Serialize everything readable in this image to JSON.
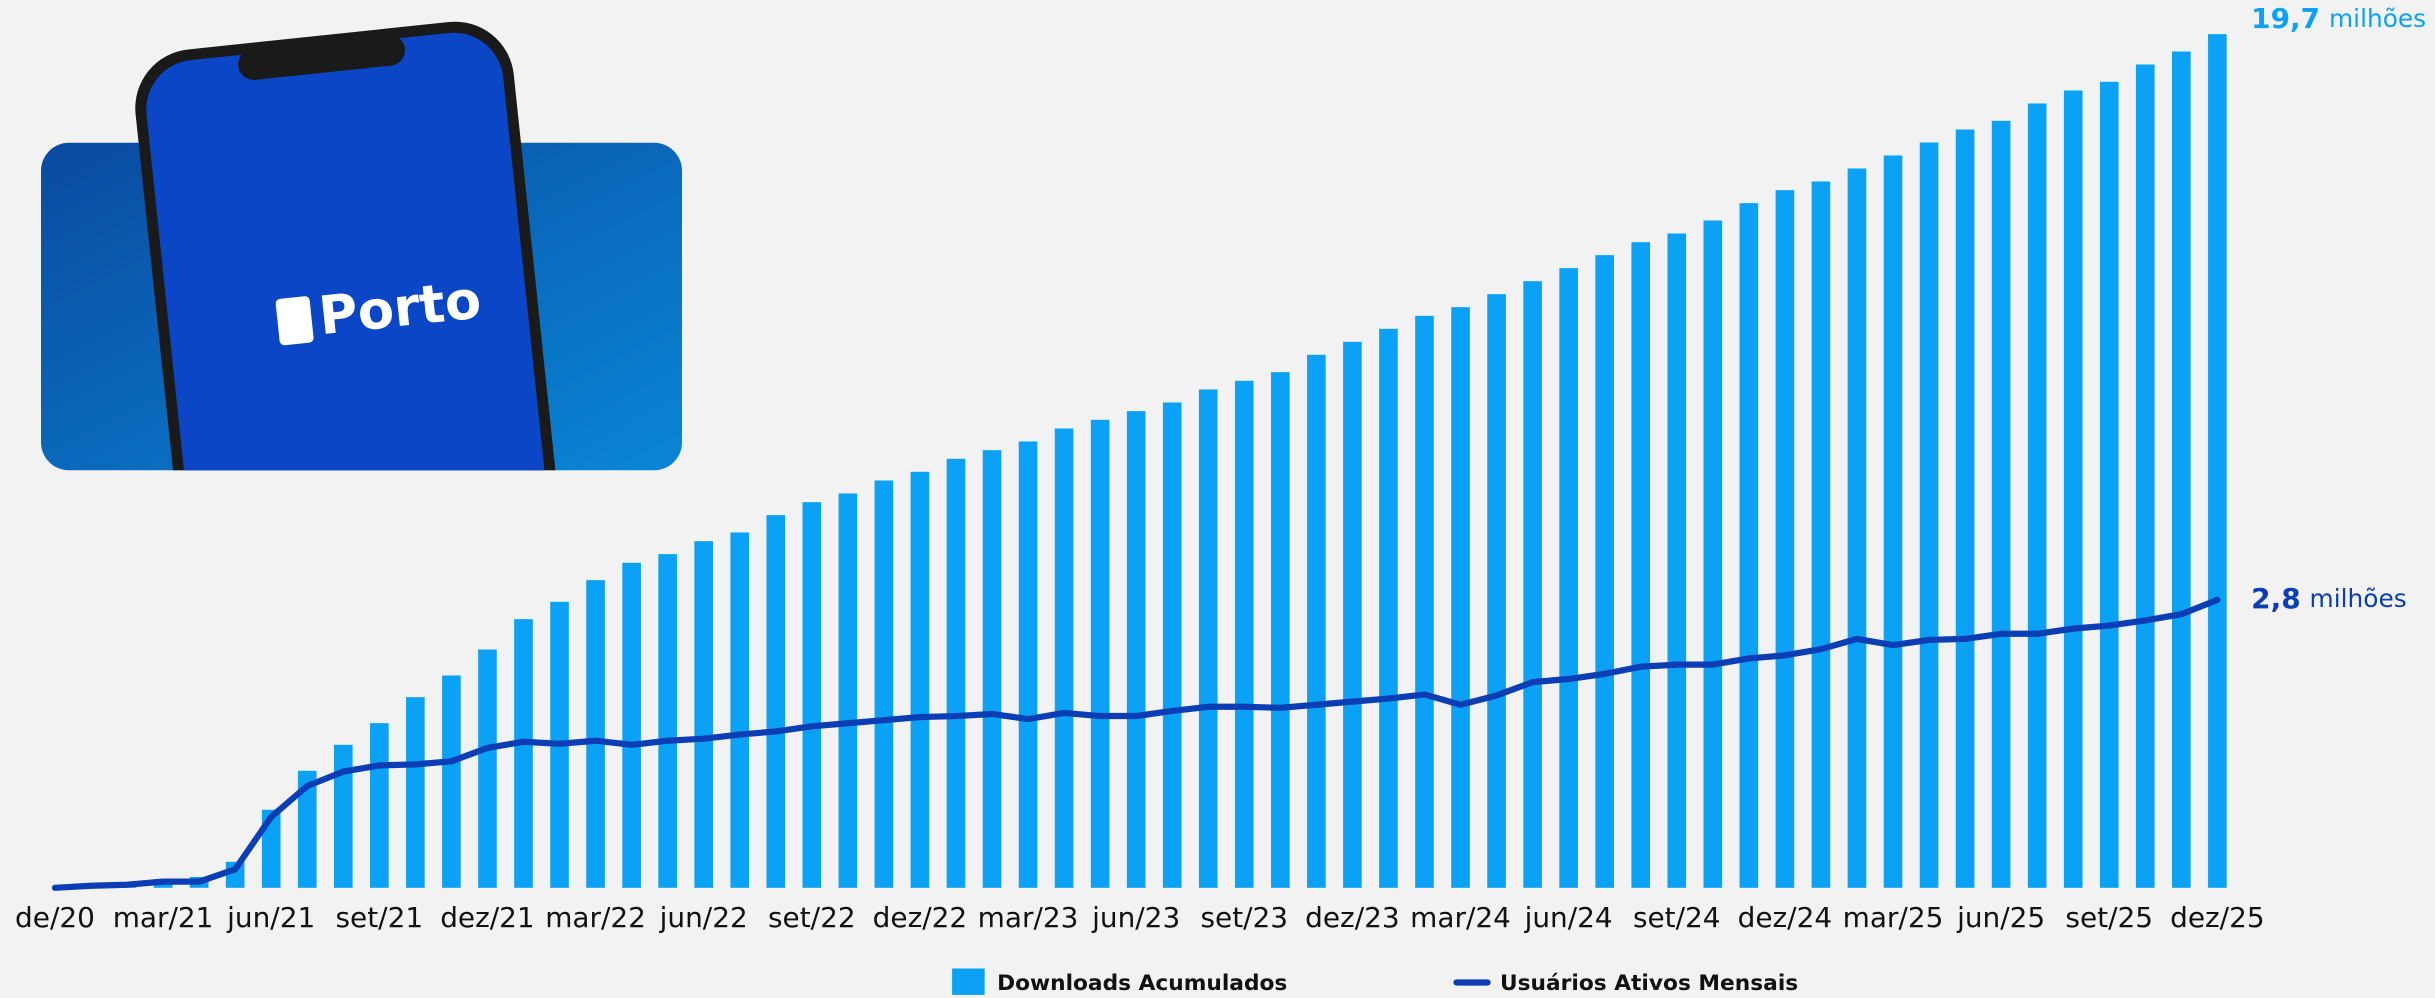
{
  "image": {
    "logo": "Porto"
  },
  "chart_data": {
    "type": "bar",
    "categories": [
      "de/20",
      null,
      null,
      "mar/21",
      null,
      null,
      "jun/21",
      null,
      null,
      "set/21",
      null,
      null,
      "dez/21",
      null,
      null,
      "mar/22",
      null,
      null,
      "jun/22",
      null,
      null,
      "set/22",
      null,
      null,
      "dez/22",
      null,
      null,
      "mar/23",
      null,
      null,
      "jun/23",
      null,
      null,
      "set/23",
      null,
      null,
      "dez/23",
      null,
      null,
      "mar/24",
      null,
      null,
      "jun/24",
      null,
      null,
      "set/24",
      null,
      null,
      "dez/24",
      null,
      null,
      "mar/25",
      null,
      null,
      "jun/25",
      null,
      null,
      "set/25",
      null,
      null,
      "dez/25"
    ],
    "series": [
      {
        "name": "Downloads Acumulados",
        "type": "bar",
        "color": "#0ba2f5",
        "values": [
          0,
          0,
          0.05,
          0.2,
          0.25,
          0.6,
          1.8,
          2.7,
          3.3,
          3.8,
          4.4,
          4.9,
          5.5,
          6.2,
          6.6,
          7.1,
          7.5,
          7.7,
          8.0,
          8.2,
          8.6,
          8.9,
          9.1,
          9.4,
          9.6,
          9.9,
          10.1,
          10.3,
          10.6,
          10.8,
          11.0,
          11.2,
          11.5,
          11.7,
          11.9,
          12.3,
          12.6,
          12.9,
          13.2,
          13.4,
          13.7,
          14.0,
          14.3,
          14.6,
          14.9,
          15.1,
          15.4,
          15.8,
          16.1,
          16.3,
          16.6,
          16.9,
          17.2,
          17.5,
          17.7,
          18.1,
          18.4,
          18.6,
          19.0,
          19.3,
          19.7
        ],
        "value_labels": [
          null,
          null,
          null,
          null,
          null,
          null,
          null,
          null,
          null,
          null,
          null,
          null,
          null,
          null,
          null,
          null,
          null,
          null,
          null,
          null,
          null,
          null,
          null,
          null,
          null,
          null,
          null,
          null,
          null,
          null,
          null,
          null,
          null,
          null,
          null,
          null,
          null,
          null,
          null,
          null,
          null,
          null,
          null,
          null,
          null,
          null,
          null,
          null,
          null,
          null,
          null,
          null,
          null,
          null,
          null,
          null,
          null,
          null,
          null,
          null,
          "19,7"
        ],
        "label_unit": "milhões"
      },
      {
        "name": "Usuários Ativos Mensais",
        "type": "line",
        "axis": "y2",
        "color": "#0b3db5",
        "values": [
          0,
          0.02,
          0.03,
          0.06,
          0.06,
          0.18,
          0.69,
          0.99,
          1.13,
          1.19,
          1.2,
          1.23,
          1.36,
          1.42,
          1.4,
          1.43,
          1.39,
          1.43,
          1.45,
          1.49,
          1.52,
          1.57,
          1.6,
          1.63,
          1.66,
          1.67,
          1.69,
          1.64,
          1.7,
          1.67,
          1.67,
          1.72,
          1.76,
          1.76,
          1.75,
          1.78,
          1.81,
          1.84,
          1.88,
          1.78,
          1.87,
          2.0,
          2.03,
          2.08,
          2.15,
          2.17,
          2.17,
          2.23,
          2.26,
          2.32,
          2.42,
          2.36,
          2.41,
          2.42,
          2.47,
          2.47,
          2.52,
          2.55,
          2.6,
          2.66,
          2.8
        ],
        "value_labels": [
          null,
          null,
          null,
          null,
          null,
          null,
          null,
          null,
          null,
          null,
          null,
          null,
          null,
          null,
          null,
          null,
          null,
          null,
          null,
          null,
          null,
          null,
          null,
          null,
          null,
          null,
          null,
          null,
          null,
          null,
          null,
          null,
          null,
          null,
          null,
          null,
          null,
          null,
          null,
          null,
          null,
          null,
          null,
          null,
          null,
          null,
          null,
          null,
          null,
          null,
          null,
          null,
          null,
          null,
          null,
          null,
          null,
          null,
          null,
          null,
          "2,8"
        ],
        "label_unit": "milhões"
      }
    ],
    "ylim": [
      0,
      19.7
    ],
    "y2lim": [
      0,
      8.3
    ],
    "legend": "bottom"
  }
}
